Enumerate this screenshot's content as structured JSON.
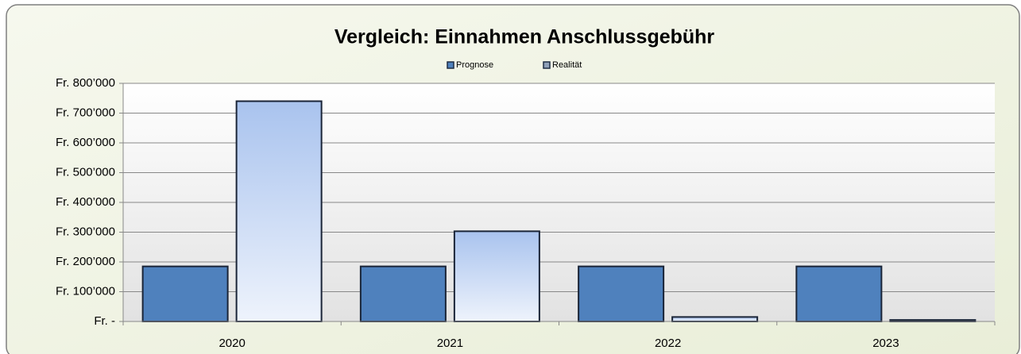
{
  "chart_data": {
    "type": "bar",
    "title": "Vergleich: Einnahmen Anschlussgebühr",
    "categories": [
      "2020",
      "2021",
      "2022",
      "2023"
    ],
    "series": [
      {
        "name": "Prognose",
        "color": "#4f81bd",
        "values": [
          185000,
          185000,
          185000,
          185000
        ]
      },
      {
        "name": "Realität",
        "color": "#b9cef0",
        "values": [
          740000,
          303000,
          15000,
          5000
        ]
      }
    ],
    "ylim": [
      0,
      800000
    ],
    "yticks": [
      {
        "value": 0,
        "label": "Fr. -"
      },
      {
        "value": 100000,
        "label": "Fr. 100’000"
      },
      {
        "value": 200000,
        "label": "Fr. 200’000"
      },
      {
        "value": 300000,
        "label": "Fr. 300’000"
      },
      {
        "value": 400000,
        "label": "Fr. 400’000"
      },
      {
        "value": 500000,
        "label": "Fr. 500’000"
      },
      {
        "value": 600000,
        "label": "Fr. 600’000"
      },
      {
        "value": 700000,
        "label": "Fr. 700’000"
      },
      {
        "value": 800000,
        "label": "Fr. 800’000"
      }
    ],
    "grid": true,
    "legend": "top"
  }
}
